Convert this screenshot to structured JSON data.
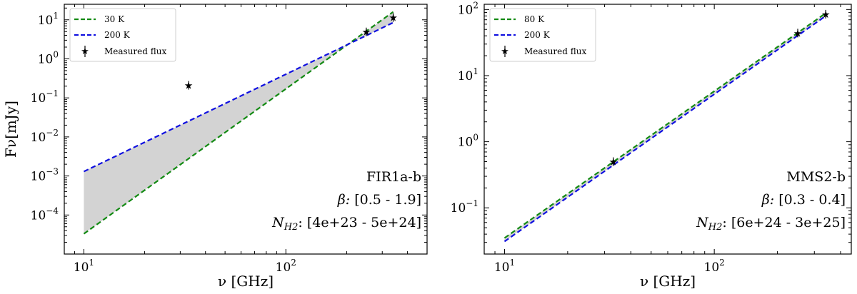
{
  "chart_data": [
    {
      "type": "line",
      "scale": "log-log",
      "object_name": "FIR1a-b",
      "xlabel": "ν [GHz]",
      "ylabel": "Fν[mJy]",
      "xlim": [
        8,
        500
      ],
      "ylim": [
        1e-05,
        25
      ],
      "x_ticks": [
        {
          "value": 10,
          "label": "10",
          "exp": "1"
        },
        {
          "value": 100,
          "label": "10",
          "exp": "2"
        }
      ],
      "y_ticks": [
        {
          "value": 0.0001,
          "label": "10",
          "exp": "−4"
        },
        {
          "value": 0.001,
          "label": "10",
          "exp": "−3"
        },
        {
          "value": 0.01,
          "label": "10",
          "exp": "−2"
        },
        {
          "value": 0.1,
          "label": "10",
          "exp": "−1"
        },
        {
          "value": 1,
          "label": "10",
          "exp": "0"
        },
        {
          "value": 10,
          "label": "10",
          "exp": "1"
        }
      ],
      "series": [
        {
          "name": "30 K",
          "color": "#138a13",
          "style": "dashed",
          "x": [
            10,
            340
          ],
          "y": [
            3.3e-05,
            16
          ]
        },
        {
          "name": "200 K",
          "color": "#1010e0",
          "style": "dashed",
          "x": [
            10,
            340
          ],
          "y": [
            0.0013,
            8.5
          ]
        }
      ],
      "fill_between": {
        "color": "#d3d3d3"
      },
      "measured_flux": {
        "name": "Measured flux",
        "x": [
          33,
          250,
          340
        ],
        "y": [
          0.21,
          4.9,
          11.5
        ]
      },
      "annotations": {
        "name": "FIR1a-b",
        "beta_label": "β:",
        "beta_range": "[0.5 - 1.9]",
        "nh2_label": "N",
        "nh2_sub": "H2",
        "nh2_range": "[4e+23 - 5e+24]"
      }
    },
    {
      "type": "line",
      "scale": "log-log",
      "object_name": "MMS2-b",
      "xlabel": "ν [GHz]",
      "ylabel": "",
      "xlim": [
        8,
        450
      ],
      "ylim": [
        0.02,
        120
      ],
      "x_ticks": [
        {
          "value": 10,
          "label": "10",
          "exp": "1"
        },
        {
          "value": 100,
          "label": "10",
          "exp": "2"
        }
      ],
      "y_ticks": [
        {
          "value": 0.1,
          "label": "10",
          "exp": "−1"
        },
        {
          "value": 1,
          "label": "10",
          "exp": "0"
        },
        {
          "value": 10,
          "label": "10",
          "exp": "1"
        },
        {
          "value": 100,
          "label": "10",
          "exp": "2"
        }
      ],
      "series": [
        {
          "name": "80 K",
          "color": "#138a13",
          "style": "dashed",
          "x": [
            10,
            340
          ],
          "y": [
            0.035,
            88
          ]
        },
        {
          "name": "200 K",
          "color": "#1010e0",
          "style": "dashed",
          "x": [
            10,
            340
          ],
          "y": [
            0.031,
            80
          ]
        }
      ],
      "fill_between": {
        "color": "#d3d3d3"
      },
      "measured_flux": {
        "name": "Measured flux",
        "x": [
          33,
          250,
          340
        ],
        "y": [
          0.5,
          44,
          85
        ]
      },
      "annotations": {
        "name": "MMS2-b",
        "beta_label": "β:",
        "beta_range": "[0.3 - 0.4]",
        "nh2_label": "N",
        "nh2_sub": "H2",
        "nh2_range": "[6e+24 - 3e+25]"
      }
    }
  ]
}
